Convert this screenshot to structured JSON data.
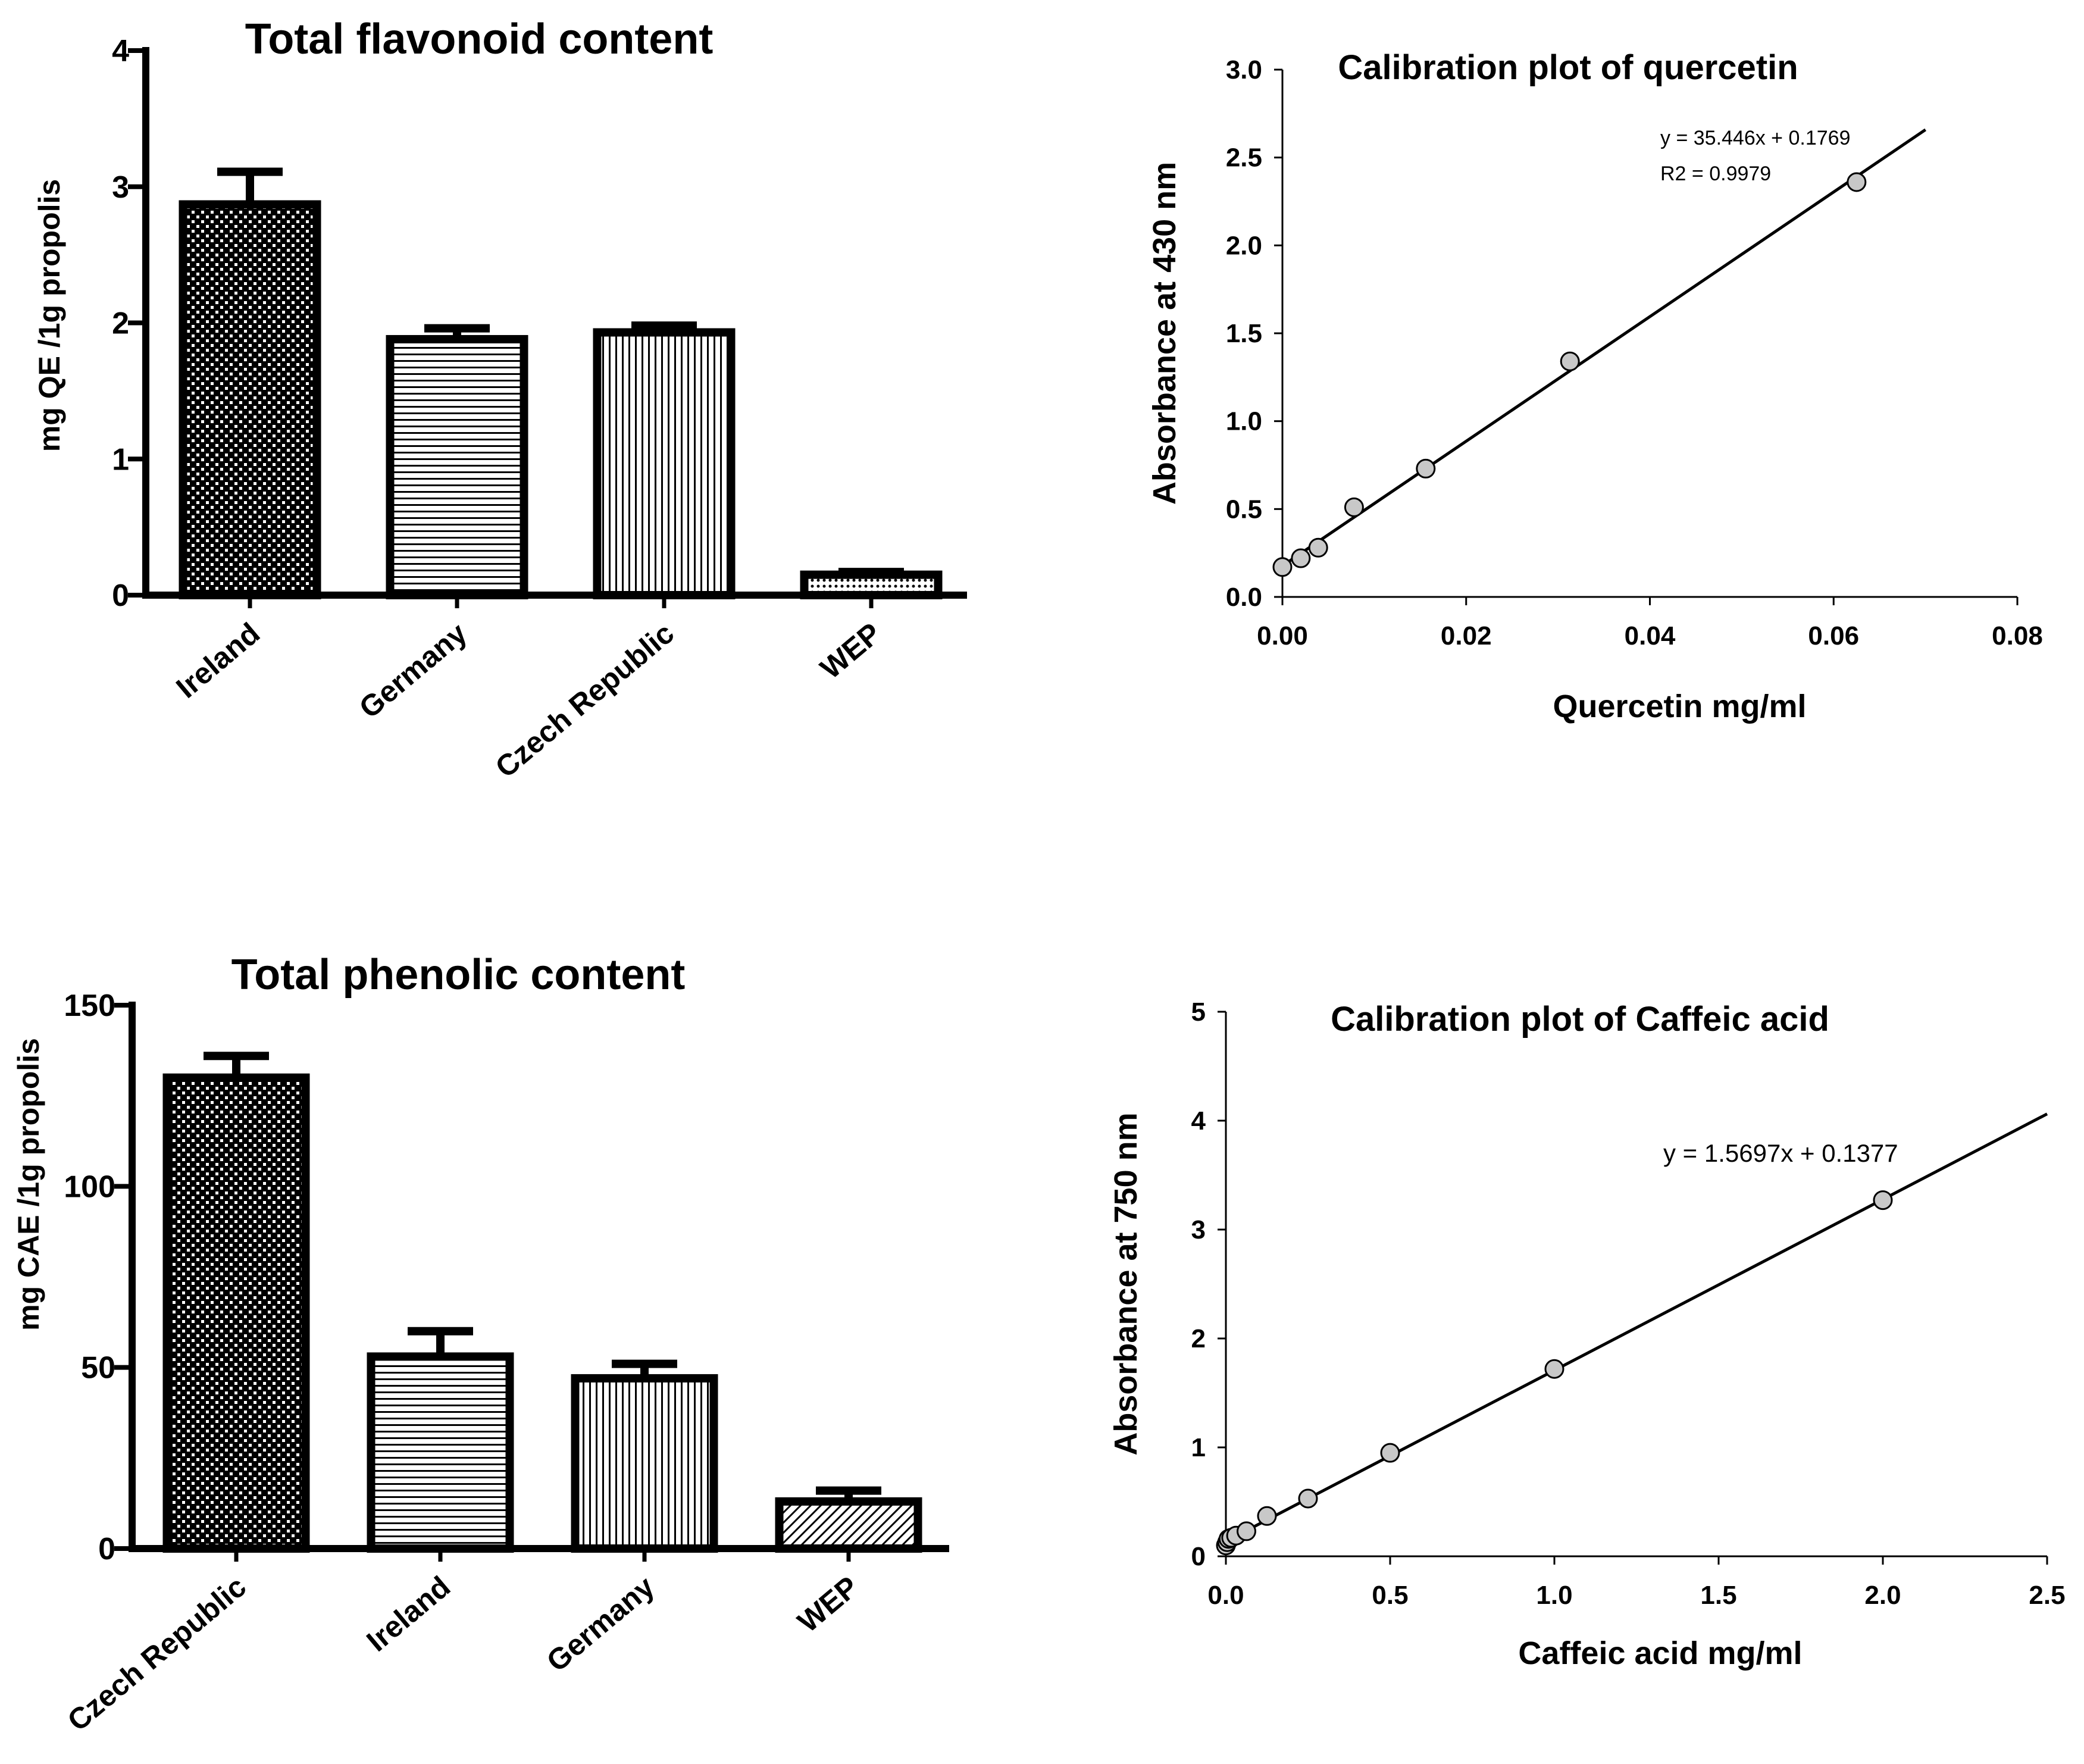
{
  "chart_data": [
    {
      "id": "flavonoid",
      "type": "bar",
      "title": "Total  flavonoid content",
      "xlabel": "",
      "ylabel": "mg QE /1g propolis",
      "ylim": [
        0,
        4
      ],
      "yticks": [
        0,
        1,
        2,
        3,
        4
      ],
      "ytick_labels": [
        "0",
        "1",
        "2",
        "3",
        "4"
      ],
      "categories": [
        "Ireland",
        "Germany",
        "Czech Republic",
        "WEP"
      ],
      "values": [
        2.87,
        1.88,
        1.93,
        0.15
      ],
      "errors": [
        0.24,
        0.08,
        0.05,
        0.02
      ],
      "patterns": [
        "checker",
        "horizontal",
        "vertical",
        "dots"
      ]
    },
    {
      "id": "quercetin",
      "type": "scatter",
      "title": "Calibration plot of quercetin",
      "xlabel": "Quercetin mg/ml",
      "ylabel": "Absorbance at 430 nm",
      "xlim": [
        0,
        0.08
      ],
      "ylim": [
        0,
        3.0
      ],
      "xticks": [
        0,
        0.02,
        0.04,
        0.06,
        0.08
      ],
      "xtick_labels": [
        "0.00",
        "0.02",
        "0.04",
        "0.06",
        "0.08"
      ],
      "yticks": [
        0,
        0.5,
        1.0,
        1.5,
        2.0,
        2.5,
        3.0
      ],
      "ytick_labels": [
        "0.0",
        "0.5",
        "1.0",
        "1.5",
        "2.0",
        "2.5",
        "3.0"
      ],
      "x": [
        0,
        0.002,
        0.0039,
        0.0078,
        0.0156,
        0.0313,
        0.0625
      ],
      "y": [
        0.17,
        0.22,
        0.28,
        0.51,
        0.73,
        1.34,
        2.36
      ],
      "trendline": {
        "slope": 35.446,
        "intercept": 0.1769,
        "x_range": [
          0,
          0.07
        ]
      },
      "annotations": [
        "y = 35.446x + 0.1769",
        "R2 = 0.9979"
      ]
    },
    {
      "id": "phenolic",
      "type": "bar",
      "title": "Total phenolic content",
      "xlabel": "",
      "ylabel": "mg CAE /1g propolis",
      "ylim": [
        0,
        150
      ],
      "yticks": [
        0,
        50,
        100,
        150
      ],
      "ytick_labels": [
        "0",
        "50",
        "100",
        "150"
      ],
      "categories": [
        "Czech Republic",
        "Ireland",
        "Germany",
        "WEP"
      ],
      "values": [
        130,
        53,
        47,
        13
      ],
      "errors": [
        6,
        7,
        4,
        3
      ],
      "patterns": [
        "checker",
        "horizontal",
        "vertical",
        "diagonal"
      ]
    },
    {
      "id": "caffeic",
      "type": "scatter",
      "title": "Calibration plot of Caffeic acid",
      "xlabel": "Caffeic acid  mg/ml",
      "ylabel": "Absorbance at 750 nm",
      "xlim": [
        0,
        2.5
      ],
      "ylim": [
        0,
        5
      ],
      "xticks": [
        0,
        0.5,
        1.0,
        1.5,
        2.0,
        2.5
      ],
      "xtick_labels": [
        "0.0",
        "0.5",
        "1.0",
        "1.5",
        "2.0",
        "2.5"
      ],
      "yticks": [
        0,
        1,
        2,
        3,
        4,
        5
      ],
      "ytick_labels": [
        "0",
        "1",
        "2",
        "3",
        "4",
        "5"
      ],
      "x": [
        0,
        0.004,
        0.008,
        0.016,
        0.031,
        0.0625,
        0.125,
        0.25,
        0.5,
        1.0,
        2.0
      ],
      "y": [
        0.1,
        0.13,
        0.16,
        0.17,
        0.19,
        0.23,
        0.37,
        0.53,
        0.95,
        1.72,
        3.27
      ],
      "trendline": {
        "slope": 1.5697,
        "intercept": 0.1377,
        "x_range": [
          0,
          2.5
        ]
      },
      "annotations": [
        "y = 1.5697x + 0.1377"
      ]
    }
  ]
}
